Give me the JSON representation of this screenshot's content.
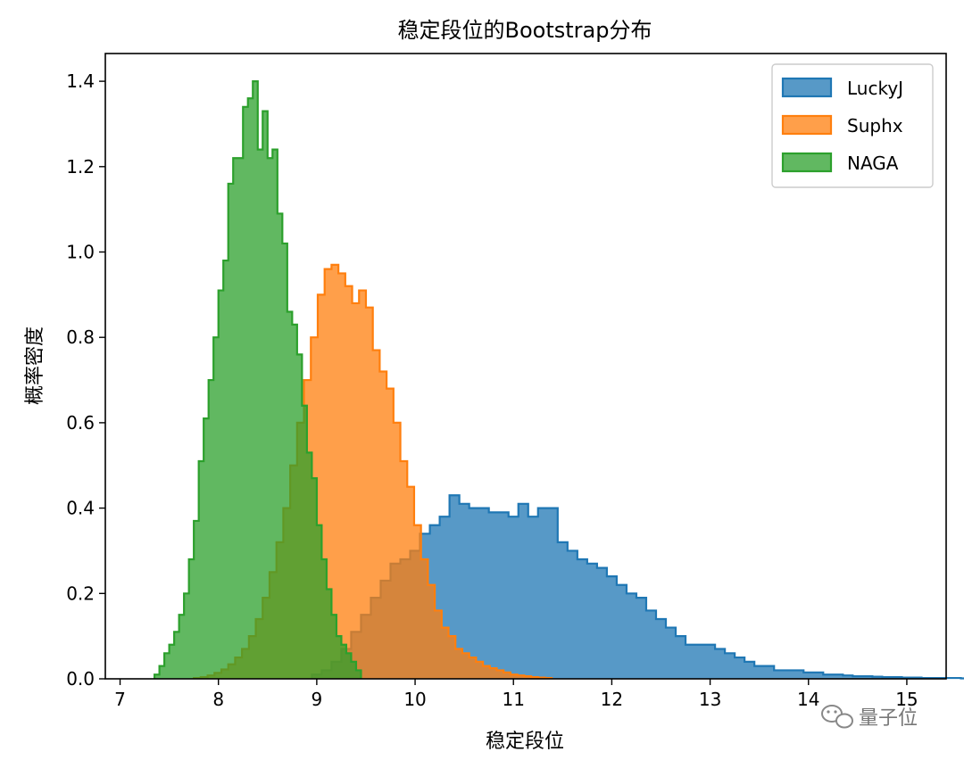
{
  "chart_data": {
    "type": "bar",
    "subtype": "step-histogram",
    "title": "稳定段位的Bootstrap分布",
    "xlabel": "稳定段位",
    "ylabel": "概率密度",
    "xlim": [
      6.85,
      15.4
    ],
    "ylim": [
      0,
      1.465
    ],
    "xticks": [
      "7",
      "8",
      "9",
      "10",
      "11",
      "12",
      "13",
      "14",
      "15"
    ],
    "yticks": [
      "0.0",
      "0.2",
      "0.4",
      "0.6",
      "0.8",
      "1.0",
      "1.2",
      "1.4"
    ],
    "legend_position": "top-right",
    "grid": false,
    "series": [
      {
        "name": "LuckyJ",
        "color": "#1f77b4",
        "fill_color": "#5497c9",
        "bin_width": 0.1,
        "edges_start": 8.95,
        "values": [
          0.01,
          0.02,
          0.04,
          0.07,
          0.11,
          0.15,
          0.19,
          0.23,
          0.27,
          0.28,
          0.3,
          0.34,
          0.36,
          0.38,
          0.43,
          0.41,
          0.4,
          0.4,
          0.39,
          0.39,
          0.38,
          0.41,
          0.38,
          0.4,
          0.4,
          0.32,
          0.3,
          0.28,
          0.27,
          0.26,
          0.24,
          0.22,
          0.2,
          0.19,
          0.16,
          0.14,
          0.12,
          0.1,
          0.08,
          0.08,
          0.08,
          0.07,
          0.06,
          0.05,
          0.04,
          0.03,
          0.03,
          0.02,
          0.02,
          0.02,
          0.015,
          0.015,
          0.01,
          0.01,
          0.008,
          0.006,
          0.006,
          0.005,
          0.004,
          0.004,
          0.003,
          0.003,
          0.002,
          0.002,
          0.002,
          0.002,
          0.001,
          0.001,
          0.001,
          0.001,
          0.001,
          0.001,
          0.001
        ]
      },
      {
        "name": "Suphx",
        "color": "#ff7f0e",
        "fill_color": "#fd9c47",
        "bin_width": 0.07,
        "edges_start": 7.75,
        "values": [
          0.002,
          0.004,
          0.008,
          0.014,
          0.022,
          0.034,
          0.05,
          0.07,
          0.1,
          0.14,
          0.19,
          0.25,
          0.32,
          0.4,
          0.5,
          0.6,
          0.7,
          0.8,
          0.9,
          0.96,
          0.97,
          0.95,
          0.92,
          0.88,
          0.91,
          0.87,
          0.77,
          0.72,
          0.68,
          0.6,
          0.51,
          0.45,
          0.36,
          0.28,
          0.22,
          0.16,
          0.12,
          0.1,
          0.07,
          0.06,
          0.05,
          0.04,
          0.03,
          0.025,
          0.02,
          0.015,
          0.01,
          0.008,
          0.006,
          0.004,
          0.003,
          0.002
        ]
      },
      {
        "name": "NAGA",
        "color": "#2ca02c",
        "fill_color": "#5fb75f",
        "bin_width": 0.05,
        "edges_start": 7.35,
        "values": [
          0.01,
          0.03,
          0.06,
          0.08,
          0.11,
          0.15,
          0.2,
          0.28,
          0.37,
          0.51,
          0.61,
          0.7,
          0.8,
          0.91,
          0.98,
          1.16,
          1.22,
          1.22,
          1.34,
          1.36,
          1.4,
          1.24,
          1.33,
          1.22,
          1.24,
          1.09,
          1.02,
          0.86,
          0.83,
          0.76,
          0.64,
          0.53,
          0.47,
          0.36,
          0.28,
          0.21,
          0.15,
          0.1,
          0.08,
          0.06,
          0.04,
          0.02
        ]
      }
    ]
  },
  "watermark": {
    "text": "量子位",
    "icon": "wechat-icon"
  }
}
